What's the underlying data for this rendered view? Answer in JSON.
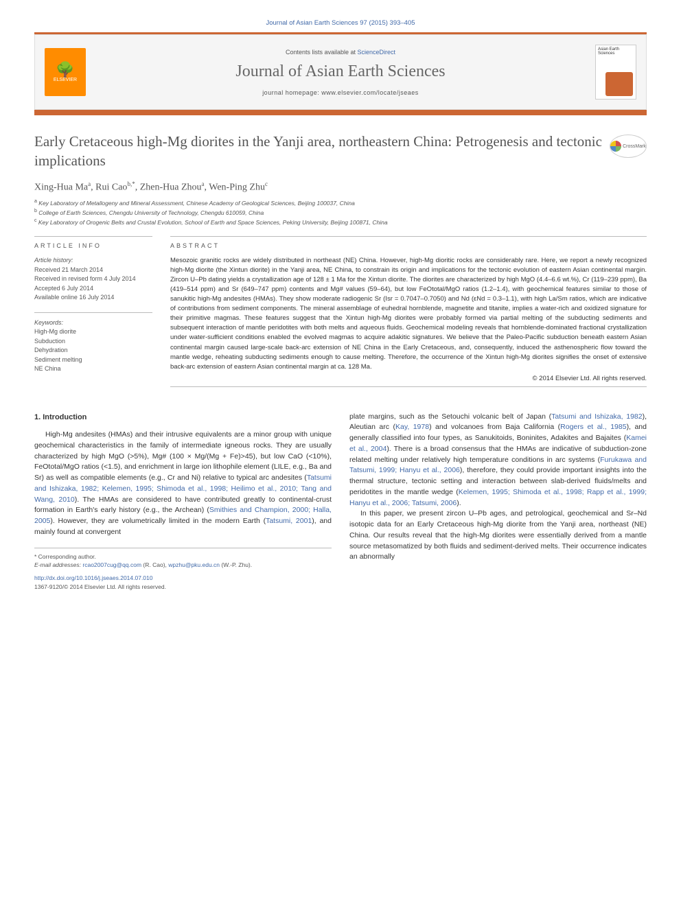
{
  "citation": "Journal of Asian Earth Sciences 97 (2015) 393–405",
  "header": {
    "contents_prefix": "Contents lists available at ",
    "contents_link": "ScienceDirect",
    "journal_name": "Journal of Asian Earth Sciences",
    "homepage_prefix": "journal homepage: ",
    "homepage_url": "www.elsevier.com/locate/jseaes",
    "publisher": "ELSEVIER",
    "cover_text": "Asian Earth Sciences"
  },
  "crossmark": "CrossMark",
  "title": "Early Cretaceous high-Mg diorites in the Yanji area, northeastern China: Petrogenesis and tectonic implications",
  "authors": [
    {
      "name": "Xing-Hua Ma",
      "aff": "a"
    },
    {
      "name": "Rui Cao",
      "aff": "b,*"
    },
    {
      "name": "Zhen-Hua Zhou",
      "aff": "a"
    },
    {
      "name": "Wen-Ping Zhu",
      "aff": "c"
    }
  ],
  "affiliations": {
    "a": "Key Laboratory of Metallogeny and Mineral Assessment, Chinese Academy of Geological Sciences, Beijing 100037, China",
    "b": "College of Earth Sciences, Chengdu University of Technology, Chengdu 610059, China",
    "c": "Key Laboratory of Orogenic Belts and Crustal Evolution, School of Earth and Space Sciences, Peking University, Beijing 100871, China"
  },
  "article_info": {
    "heading": "ARTICLE INFO",
    "history_label": "Article history:",
    "received": "Received 21 March 2014",
    "revised": "Received in revised form 4 July 2014",
    "accepted": "Accepted 6 July 2014",
    "online": "Available online 16 July 2014",
    "keywords_label": "Keywords:",
    "keywords": [
      "High-Mg diorite",
      "Subduction",
      "Dehydration",
      "Sediment melting",
      "NE China"
    ]
  },
  "abstract": {
    "heading": "ABSTRACT",
    "text": "Mesozoic granitic rocks are widely distributed in northeast (NE) China. However, high-Mg dioritic rocks are considerably rare. Here, we report a newly recognized high-Mg diorite (the Xintun diorite) in the Yanji area, NE China, to constrain its origin and implications for the tectonic evolution of eastern Asian continental margin. Zircon U–Pb dating yields a crystallization age of 128 ± 1 Ma for the Xintun diorite. The diorites are characterized by high MgO (4.4–6.6 wt.%), Cr (119–239 ppm), Ba (419–514 ppm) and Sr (649–747 ppm) contents and Mg# values (59–64), but low FeOtotal/MgO ratios (1.2–1.4), with geochemical features similar to those of sanukitic high-Mg andesites (HMAs). They show moderate radiogenic Sr (Isr = 0.7047–0.7050) and Nd (εNd = 0.3–1.1), with high La/Sm ratios, which are indicative of contributions from sediment components. The mineral assemblage of euhedral hornblende, magnetite and titanite, implies a water-rich and oxidized signature for their primitive magmas. These features suggest that the Xintun high-Mg diorites were probably formed via partial melting of the subducting sediments and subsequent interaction of mantle peridotites with both melts and aqueous fluids. Geochemical modeling reveals that hornblende-dominated fractional crystallization under water-sufficient conditions enabled the evolved magmas to acquire adakitic signatures. We believe that the Paleo-Pacific subduction beneath eastern Asian continental margin caused large-scale back-arc extension of NE China in the Early Cretaceous, and, consequently, induced the asthenospheric flow toward the mantle wedge, reheating subducting sediments enough to cause melting. Therefore, the occurrence of the Xintun high-Mg diorites signifies the onset of extensive back-arc extension of eastern Asian continental margin at ca. 128 Ma.",
    "copyright": "© 2014 Elsevier Ltd. All rights reserved."
  },
  "intro": {
    "heading": "1. Introduction",
    "col1_p1_a": "High-Mg andesites (HMAs) and their intrusive equivalents are a minor group with unique geochemical characteristics in the family of intermediate igneous rocks. They are usually characterized by high MgO (>5%), Mg# (100 × Mg/(Mg + Fe)>45), but low CaO (<10%), FeOtotal/MgO ratios (<1.5), and enrichment in large ion lithophile element (LILE, e.g., Ba and Sr) as well as compatible elements (e.g., Cr and Ni) relative to typical arc andesites (",
    "col1_ref1": "Tatsumi and Ishizaka, 1982; Kelemen, 1995; Shimoda et al., 1998; Heilimo et al., 2010; Tang and Wang, 2010",
    "col1_p1_b": "). The HMAs are considered to have contributed greatly to continental-crust formation in Earth's early history (e.g., the Archean) (",
    "col1_ref2": "Smithies and Champion, 2000; Halla, 2005",
    "col1_p1_c": "). However, they are volumetrically limited in the modern Earth (",
    "col1_ref3": "Tatsumi, 2001",
    "col1_p1_d": "), and mainly found at convergent",
    "col2_p1_a": "plate margins, such as the Setouchi volcanic belt of Japan (",
    "col2_ref1": "Tatsumi and Ishizaka, 1982",
    "col2_p1_b": "), Aleutian arc (",
    "col2_ref2": "Kay, 1978",
    "col2_p1_c": ") and volcanoes from Baja California (",
    "col2_ref3": "Rogers et al., 1985",
    "col2_p1_d": "), and generally classified into four types, as Sanukitoids, Boninites, Adakites and Bajaites (",
    "col2_ref4": "Kamei et al., 2004",
    "col2_p1_e": "). There is a broad consensus that the HMAs are indicative of subduction-zone related melting under relatively high temperature conditions in arc systems (",
    "col2_ref5": "Furukawa and Tatsumi, 1999; Hanyu et al., 2006",
    "col2_p1_f": "), therefore, they could provide important insights into the thermal structure, tectonic setting and interaction between slab-derived fluids/melts and peridotites in the mantle wedge (",
    "col2_ref6": "Kelemen, 1995; Shimoda et al., 1998; Rapp et al., 1999; Hanyu et al., 2006; Tatsumi, 2006",
    "col2_p1_g": ").",
    "col2_p2": "In this paper, we present zircon U–Pb ages, and petrological, geochemical and Sr–Nd isotopic data for an Early Cretaceous high-Mg diorite from the Yanji area, northeast (NE) China. Our results reveal that the high-Mg diorites were essentially derived from a mantle source metasomatized by both fluids and sediment-derived melts. Their occurrence indicates an abnormally"
  },
  "footer": {
    "corr_label": "* Corresponding author.",
    "email_label": "E-mail addresses: ",
    "email1": "rcao2007cug@qq.com",
    "email1_who": " (R. Cao), ",
    "email2": "wpzhu@pku.edu.cn",
    "email2_who": " (W.-P. Zhu).",
    "doi": "http://dx.doi.org/10.1016/j.jseaes.2014.07.010",
    "issn": "1367-9120/© 2014 Elsevier Ltd. All rights reserved."
  },
  "colors": {
    "accent": "#cc6633",
    "link": "#4169a8",
    "text": "#333333",
    "muted": "#555555",
    "rule": "#bbbbbb",
    "bg_header": "#f5f5f5"
  },
  "typography": {
    "title_fontsize": 21,
    "journal_fontsize": 24,
    "body_fontsize": 10.5,
    "abstract_fontsize": 9.5,
    "info_fontsize": 9
  }
}
